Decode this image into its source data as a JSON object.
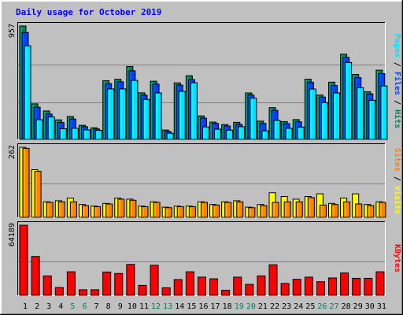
{
  "title": "Daily usage for October 2019",
  "colors": {
    "background": "#c0c0c0",
    "title": "#0000ff",
    "hits": "#00805c",
    "files": "#0040ff",
    "pages": "#00e0ff",
    "visits": "#ffff00",
    "sites": "#ff8000",
    "kbytes": "#ff0000",
    "weekend_day": "#00805c",
    "weekday": "#000000",
    "separator": "#000000"
  },
  "legends": {
    "hits": "Hits",
    "files": "Files",
    "pages": "Pages",
    "visits": "Visits",
    "sites": "Sites",
    "kbytes": "KBytes",
    "separator": "/"
  },
  "chart_data": [
    {
      "type": "bar",
      "title": "Daily usage for October 2019",
      "y_axis_label": "957",
      "ylim": [
        0,
        957
      ],
      "categories": [
        "1",
        "2",
        "3",
        "4",
        "5",
        "6",
        "7",
        "8",
        "9",
        "10",
        "11",
        "12",
        "13",
        "14",
        "15",
        "16",
        "17",
        "18",
        "19",
        "20",
        "21",
        "22",
        "23",
        "24",
        "25",
        "26",
        "27",
        "28",
        "29",
        "30",
        "31"
      ],
      "weekend_days": [
        "5",
        "6",
        "12",
        "13",
        "19",
        "20",
        "26",
        "27"
      ],
      "series": [
        {
          "name": "Hits",
          "values": [
            957,
            300,
            240,
            165,
            193,
            119,
            98,
            495,
            507,
            615,
            393,
            491,
            79,
            477,
            537,
            198,
            146,
            125,
            144,
            392,
            154,
            268,
            150,
            167,
            508,
            374,
            483,
            719,
            548,
            402,
            584
          ]
        },
        {
          "name": "Files",
          "values": [
            902,
            272,
            214,
            143,
            172,
            107,
            88,
            470,
            486,
            579,
            373,
            467,
            67,
            458,
            505,
            179,
            134,
            113,
            127,
            375,
            135,
            245,
            133,
            148,
            483,
            357,
            455,
            692,
            521,
            384,
            555
          ]
        },
        {
          "name": "Pages",
          "values": [
            790,
            166,
            190,
            90,
            94,
            80,
            76,
            426,
            426,
            498,
            337,
            392,
            52,
            405,
            478,
            105,
            86,
            78,
            107,
            348,
            72,
            161,
            94,
            104,
            425,
            311,
            392,
            649,
            436,
            330,
            451
          ]
        }
      ]
    },
    {
      "type": "bar",
      "y_axis_label": "262",
      "ylim": [
        0,
        262
      ],
      "categories": [
        "1",
        "2",
        "3",
        "4",
        "5",
        "6",
        "7",
        "8",
        "9",
        "10",
        "11",
        "12",
        "13",
        "14",
        "15",
        "16",
        "17",
        "18",
        "19",
        "20",
        "21",
        "22",
        "23",
        "24",
        "25",
        "26",
        "27",
        "28",
        "29",
        "30",
        "31"
      ],
      "series": [
        {
          "name": "Visits",
          "values": [
            262,
            178,
            58,
            62,
            72,
            48,
            42,
            52,
            72,
            68,
            42,
            58,
            38,
            42,
            42,
            58,
            48,
            58,
            62,
            38,
            48,
            92,
            78,
            68,
            78,
            88,
            52,
            72,
            88,
            48,
            58
          ]
        },
        {
          "name": "Sites",
          "values": [
            258,
            172,
            56,
            58,
            58,
            44,
            40,
            50,
            68,
            64,
            40,
            56,
            36,
            40,
            40,
            56,
            46,
            56,
            58,
            36,
            44,
            56,
            58,
            58,
            74,
            46,
            48,
            58,
            50,
            44,
            56
          ]
        }
      ]
    },
    {
      "type": "bar",
      "y_axis_label": "64189",
      "ylim": [
        0,
        64189
      ],
      "categories": [
        "1",
        "2",
        "3",
        "4",
        "5",
        "6",
        "7",
        "8",
        "9",
        "10",
        "11",
        "12",
        "13",
        "14",
        "15",
        "16",
        "17",
        "18",
        "19",
        "20",
        "21",
        "22",
        "23",
        "24",
        "25",
        "26",
        "27",
        "28",
        "29",
        "30",
        "31"
      ],
      "series": [
        {
          "name": "KBytes",
          "values": [
            64189,
            35553,
            17775,
            7111,
            21553,
            5110,
            5110,
            21331,
            19997,
            28331,
            9110,
            27553,
            6888,
            14442,
            21553,
            16664,
            15110,
            4666,
            16664,
            9998,
            17775,
            27997,
            10888,
            14664,
            16664,
            12444,
            15886,
            20442,
            15553,
            15553,
            21553
          ]
        }
      ]
    }
  ]
}
